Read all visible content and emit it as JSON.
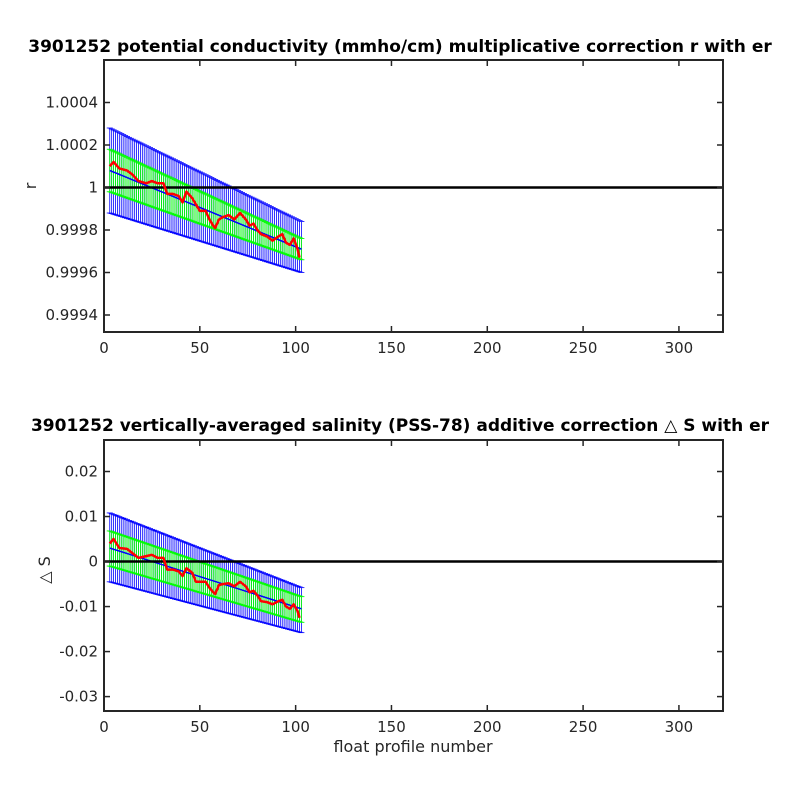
{
  "figure": {
    "background": "#ffffff"
  },
  "colors": {
    "axis": "#262626",
    "zero_line": "#000000",
    "outer_error": "#0000ff",
    "inner_error": "#00ff00",
    "correction_fit": "#0000ff",
    "profile_values": "#ff0000"
  },
  "chart_data": [
    {
      "type": "line",
      "title": "3901252 potential conductivity (mmho/cm) multiplicative correction r with er",
      "xlabel": "",
      "ylabel": "r",
      "xlim": [
        0,
        323
      ],
      "ylim": [
        0.99932,
        1.0006
      ],
      "xticks": [
        0,
        50,
        100,
        150,
        200,
        250,
        300
      ],
      "xtick_labels": [
        "0",
        "50",
        "100",
        "150",
        "200",
        "250",
        "300"
      ],
      "yticks": [
        0.9994,
        0.9996,
        0.9998,
        1,
        1.0002,
        1.0004
      ],
      "ytick_labels": [
        "0.9994",
        "0.9996",
        "0.9998",
        "1",
        "1.0002",
        "1.0004"
      ],
      "reference_line": 1,
      "x_range": [
        3,
        103
      ],
      "fit_line": {
        "x": [
          3,
          103
        ],
        "y": [
          1.00008,
          0.99971
        ]
      },
      "outer_error_band": {
        "upper": [
          [
            3,
            1.00028
          ],
          [
            103,
            0.99984
          ]
        ],
        "lower": [
          [
            3,
            0.99988
          ],
          [
            103,
            0.9996
          ]
        ]
      },
      "inner_error_band": {
        "upper": [
          [
            3,
            1.00018
          ],
          [
            103,
            0.99976
          ]
        ],
        "lower": [
          [
            3,
            0.99998
          ],
          [
            103,
            0.99966
          ]
        ]
      },
      "series": [
        {
          "x": [
            3,
            5,
            8,
            12,
            15,
            18,
            22,
            25,
            28,
            31,
            33,
            36,
            39,
            41,
            43,
            46,
            48,
            50,
            53,
            55,
            57,
            58,
            60,
            62,
            65,
            68,
            71,
            74,
            76,
            78,
            80,
            82,
            85,
            88,
            91,
            93,
            95,
            97,
            99,
            101,
            102
          ],
          "y": [
            1.0001,
            1.00012,
            1.00009,
            1.00008,
            1.00006,
            1.00003,
            1.00002,
            1.00003,
            1.00002,
            1.00002,
            0.99997,
            0.99997,
            0.99996,
            0.99993,
            0.99998,
            0.99995,
            0.99992,
            0.99989,
            0.99989,
            0.99985,
            0.99982,
            0.99981,
            0.99985,
            0.99986,
            0.99987,
            0.99985,
            0.99988,
            0.99985,
            0.99982,
            0.99983,
            0.9998,
            0.99978,
            0.99977,
            0.99975,
            0.99977,
            0.99978,
            0.99974,
            0.99973,
            0.99976,
            0.99971,
            0.99967
          ]
        }
      ]
    },
    {
      "type": "line",
      "title": "3901252 vertically-averaged salinity (PSS-78) additive correction △ S with er",
      "xlabel": "float profile number",
      "ylabel": "△ S",
      "xlim": [
        0,
        323
      ],
      "ylim": [
        -0.0332,
        0.027
      ],
      "xticks": [
        0,
        50,
        100,
        150,
        200,
        250,
        300
      ],
      "xtick_labels": [
        "0",
        "50",
        "100",
        "150",
        "200",
        "250",
        "300"
      ],
      "yticks": [
        -0.03,
        -0.02,
        -0.01,
        0,
        0.01,
        0.02
      ],
      "ytick_labels": [
        "-0.03",
        "-0.02",
        "-0.01",
        "0",
        "0.01",
        "0.02"
      ],
      "reference_line": 0,
      "x_range": [
        3,
        103
      ],
      "fit_line": {
        "x": [
          3,
          103
        ],
        "y": [
          0.003,
          -0.0105
        ]
      },
      "outer_error_band": {
        "upper": [
          [
            3,
            0.0108
          ],
          [
            103,
            -0.0058
          ]
        ],
        "lower": [
          [
            3,
            -0.0045
          ],
          [
            103,
            -0.0158
          ]
        ]
      },
      "inner_error_band": {
        "upper": [
          [
            3,
            0.0068
          ],
          [
            103,
            -0.0078
          ]
        ],
        "lower": [
          [
            3,
            -0.001
          ],
          [
            103,
            -0.0135
          ]
        ]
      },
      "series": [
        {
          "x": [
            3,
            5,
            8,
            12,
            15,
            18,
            22,
            25,
            28,
            31,
            33,
            36,
            39,
            41,
            43,
            46,
            48,
            50,
            53,
            55,
            57,
            58,
            60,
            62,
            65,
            68,
            71,
            74,
            76,
            78,
            80,
            82,
            85,
            88,
            91,
            93,
            95,
            97,
            99,
            101,
            102
          ],
          "y": [
            0.004,
            0.005,
            0.003,
            0.0028,
            0.0018,
            0.0008,
            0.0012,
            0.0015,
            0.0008,
            0.0008,
            -0.0018,
            -0.0018,
            -0.0022,
            -0.0032,
            -0.0015,
            -0.0025,
            -0.0045,
            -0.0045,
            -0.0045,
            -0.0058,
            -0.0068,
            -0.0072,
            -0.0052,
            -0.005,
            -0.0048,
            -0.0055,
            -0.0045,
            -0.0055,
            -0.0068,
            -0.0065,
            -0.0075,
            -0.0088,
            -0.009,
            -0.0095,
            -0.0088,
            -0.0085,
            -0.01,
            -0.0105,
            -0.0095,
            -0.011,
            -0.0125
          ]
        }
      ]
    }
  ]
}
